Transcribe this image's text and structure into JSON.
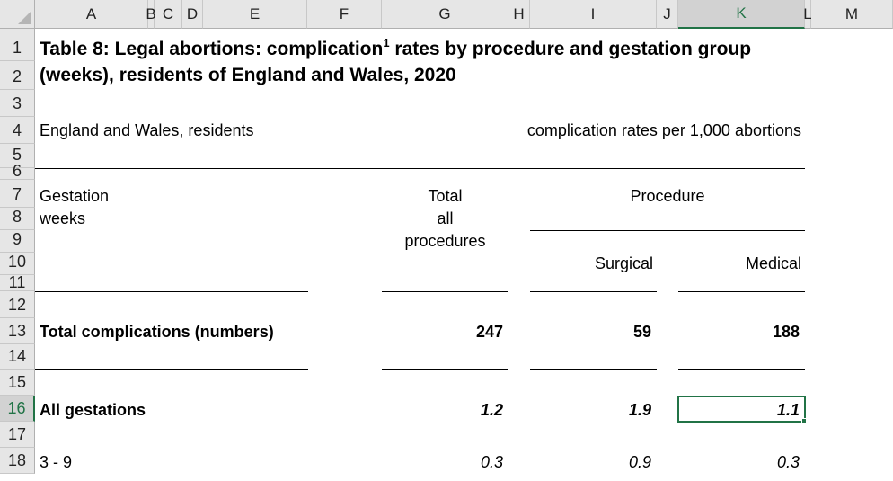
{
  "columns": [
    "A",
    "B",
    "C",
    "D",
    "E",
    "F",
    "G",
    "H",
    "I",
    "J",
    "K",
    "L",
    "M"
  ],
  "selected_column": "K",
  "rows": [
    "1",
    "2",
    "3",
    "4",
    "5",
    "6",
    "7",
    "8",
    "9",
    "10",
    "11",
    "12",
    "13",
    "14",
    "15",
    "16",
    "17",
    "18"
  ],
  "selected_row": "16",
  "title_line1": "Table 8: Legal abortions: complication",
  "title_sup": "1",
  "title_line1_rest": " rates by procedure and gestation group",
  "title_line2": "(weeks), residents of England and Wales, 2020",
  "subtitle_left": "England and Wales, residents",
  "subtitle_right": "complication rates per 1,000 abortions",
  "headers": {
    "gestation_1": "Gestation",
    "gestation_2": "weeks",
    "total_1": "Total",
    "total_2": "all",
    "total_3": "procedures",
    "procedure": "Procedure",
    "surgical": "Surgical",
    "medical": "Medical"
  },
  "table": [
    {
      "label": "Total complications (numbers)",
      "total": "247",
      "surgical": "59",
      "medical": "188",
      "style": "bold"
    },
    {
      "label": "All gestations",
      "total": "1.2",
      "surgical": "1.9",
      "medical": "1.1",
      "style": "bold-italic"
    },
    {
      "label": "3 - 9",
      "total": "0.3",
      "surgical": "0.9",
      "medical": "0.3",
      "style": "italic"
    }
  ],
  "active_cell": "K16",
  "accent_color": "#217346"
}
